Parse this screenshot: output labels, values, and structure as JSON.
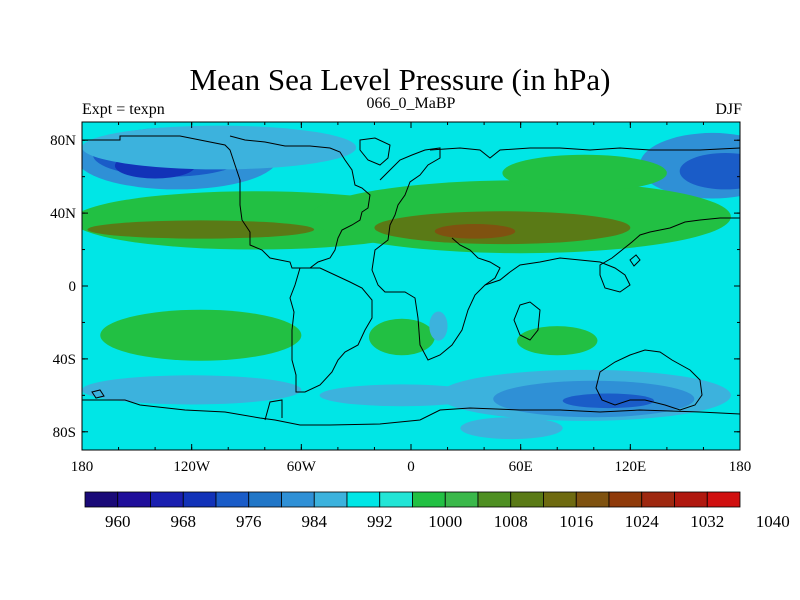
{
  "chart_data": {
    "type": "heatmap",
    "title": "Mean Sea Level Pressure (in hPa)",
    "subtitle_left": "Expt = texpn",
    "subtitle_center": "066_0_MaBP",
    "subtitle_right": "DJF",
    "xlim": [
      -180,
      180
    ],
    "ylim": [
      -90,
      90
    ],
    "x_ticks": [
      {
        "value": -180,
        "label": "180"
      },
      {
        "value": -120,
        "label": "120W"
      },
      {
        "value": -60,
        "label": "60W"
      },
      {
        "value": 0,
        "label": "0"
      },
      {
        "value": 60,
        "label": "60E"
      },
      {
        "value": 120,
        "label": "120E"
      },
      {
        "value": 180,
        "label": "180"
      }
    ],
    "y_ticks": [
      {
        "value": 80,
        "label": "80N"
      },
      {
        "value": 40,
        "label": "40N"
      },
      {
        "value": 0,
        "label": "0"
      },
      {
        "value": -40,
        "label": "40S"
      },
      {
        "value": -80,
        "label": "80S"
      }
    ],
    "colorbar": {
      "colors": [
        "#1a0a78",
        "#1f0e9a",
        "#1a1fb0",
        "#1232b8",
        "#1a5cc8",
        "#2176c7",
        "#2f90d6",
        "#3cb2dd",
        "#00e6e6",
        "#22e5d6",
        "#22c043",
        "#3ab84a",
        "#4e8f22",
        "#5a7a16",
        "#6e6a10",
        "#7f5210",
        "#8f3a0a",
        "#9e2810",
        "#b0180f",
        "#d01010"
      ],
      "labels": [
        "960",
        "968",
        "976",
        "984",
        "992",
        "1000",
        "1008",
        "1016",
        "1024",
        "1032",
        "1040"
      ],
      "label_slots": [
        1,
        3,
        5,
        7,
        9,
        11,
        13,
        15,
        17,
        19,
        21
      ]
    },
    "field": {
      "background": "#00e6e6",
      "regions": [
        {
          "level": 984,
          "color": "#2f90d6",
          "shape": "ellipse",
          "lon": -128,
          "lat": 70,
          "rlon": 55,
          "rlat": 17
        },
        {
          "level": 976,
          "color": "#1a5cc8",
          "shape": "ellipse",
          "lon": -132,
          "lat": 72,
          "rlon": 42,
          "rlat": 12
        },
        {
          "level": 968,
          "color": "#1232b8",
          "shape": "ellipse",
          "lon": -140,
          "lat": 66,
          "rlon": 22,
          "rlat": 7
        },
        {
          "level": 992,
          "color": "#3cb2dd",
          "shape": "ellipse",
          "lon": -105,
          "lat": 76,
          "rlon": 75,
          "rlat": 12
        },
        {
          "level": 984,
          "color": "#2f90d6",
          "shape": "ellipse",
          "lon": 165,
          "lat": 66,
          "rlon": 40,
          "rlat": 18
        },
        {
          "level": 976,
          "color": "#1a5cc8",
          "shape": "ellipse",
          "lon": 172,
          "lat": 63,
          "rlon": 25,
          "rlat": 10
        },
        {
          "level": 1008,
          "color": "#22c043",
          "shape": "ellipse",
          "lon": -85,
          "lat": 36,
          "rlon": 100,
          "rlat": 16
        },
        {
          "level": 1008,
          "color": "#22c043",
          "shape": "ellipse",
          "lon": 60,
          "lat": 38,
          "rlon": 115,
          "rlat": 20
        },
        {
          "level": 1008,
          "color": "#22c043",
          "shape": "ellipse",
          "lon": 95,
          "lat": 62,
          "rlon": 45,
          "rlat": 10
        },
        {
          "level": 1016,
          "color": "#5a7a16",
          "shape": "ellipse",
          "lon": -115,
          "lat": 31,
          "rlon": 62,
          "rlat": 5
        },
        {
          "level": 1016,
          "color": "#5a7a16",
          "shape": "ellipse",
          "lon": 50,
          "lat": 32,
          "rlon": 70,
          "rlat": 9
        },
        {
          "level": 1024,
          "color": "#7f5210",
          "shape": "ellipse",
          "lon": 35,
          "lat": 30,
          "rlon": 22,
          "rlat": 4
        },
        {
          "level": 1008,
          "color": "#22c043",
          "shape": "ellipse",
          "lon": -115,
          "lat": -27,
          "rlon": 55,
          "rlat": 14
        },
        {
          "level": 1008,
          "color": "#22c043",
          "shape": "ellipse",
          "lon": -5,
          "lat": -28,
          "rlon": 18,
          "rlat": 10
        },
        {
          "level": 1008,
          "color": "#22c043",
          "shape": "ellipse",
          "lon": 80,
          "lat": -30,
          "rlon": 22,
          "rlat": 8
        },
        {
          "level": 992,
          "color": "#3cb2dd",
          "shape": "ellipse",
          "lon": 15,
          "lat": -22,
          "rlon": 5,
          "rlat": 8
        },
        {
          "level": 992,
          "color": "#3cb2dd",
          "shape": "ellipse",
          "lon": -120,
          "lat": -57,
          "rlon": 60,
          "rlat": 8
        },
        {
          "level": 992,
          "color": "#3cb2dd",
          "shape": "ellipse",
          "lon": 95,
          "lat": -60,
          "rlon": 80,
          "rlat": 14
        },
        {
          "level": 984,
          "color": "#2f90d6",
          "shape": "ellipse",
          "lon": 100,
          "lat": -62,
          "rlon": 55,
          "rlat": 10
        },
        {
          "level": 976,
          "color": "#1a5cc8",
          "shape": "ellipse",
          "lon": 108,
          "lat": -63,
          "rlon": 25,
          "rlat": 4
        },
        {
          "level": 992,
          "color": "#3cb2dd",
          "shape": "ellipse",
          "lon": -5,
          "lat": -60,
          "rlon": 45,
          "rlat": 6
        },
        {
          "level": 992,
          "color": "#3cb2dd",
          "shape": "ellipse",
          "lon": 55,
          "lat": -78,
          "rlon": 28,
          "rlat": 6
        }
      ]
    }
  }
}
